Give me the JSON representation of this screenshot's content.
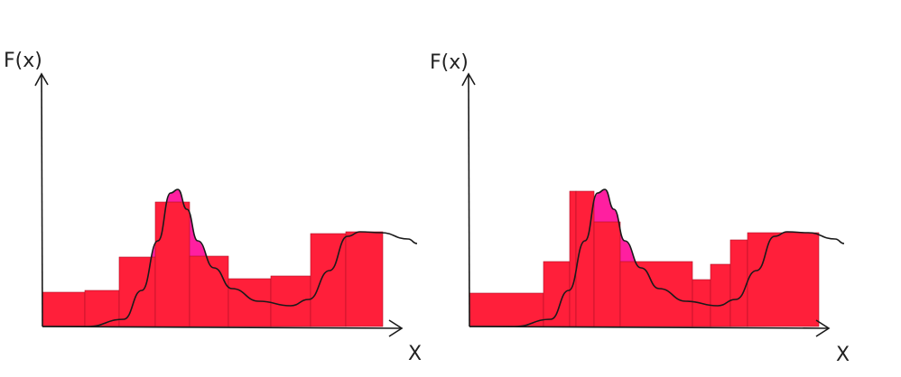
{
  "panels": [
    {
      "id": "left",
      "ylabel": "F(x)",
      "xlabel": "X",
      "description_of_partition": "uniform",
      "colors": {
        "rect": "#FF1F3A",
        "under": "#FF1FA0",
        "over": "#FF8A1F",
        "curve": "#1a1a1a",
        "axis": "#1a1a1a"
      }
    },
    {
      "id": "right",
      "ylabel": "F(x)",
      "xlabel": "X",
      "description_of_partition": "adaptive",
      "colors": {
        "rect": "#FF1F3A",
        "under": "#FF1FA0",
        "over": "#FF8A1F",
        "curve": "#1a1a1a",
        "axis": "#1a1a1a"
      }
    }
  ]
}
